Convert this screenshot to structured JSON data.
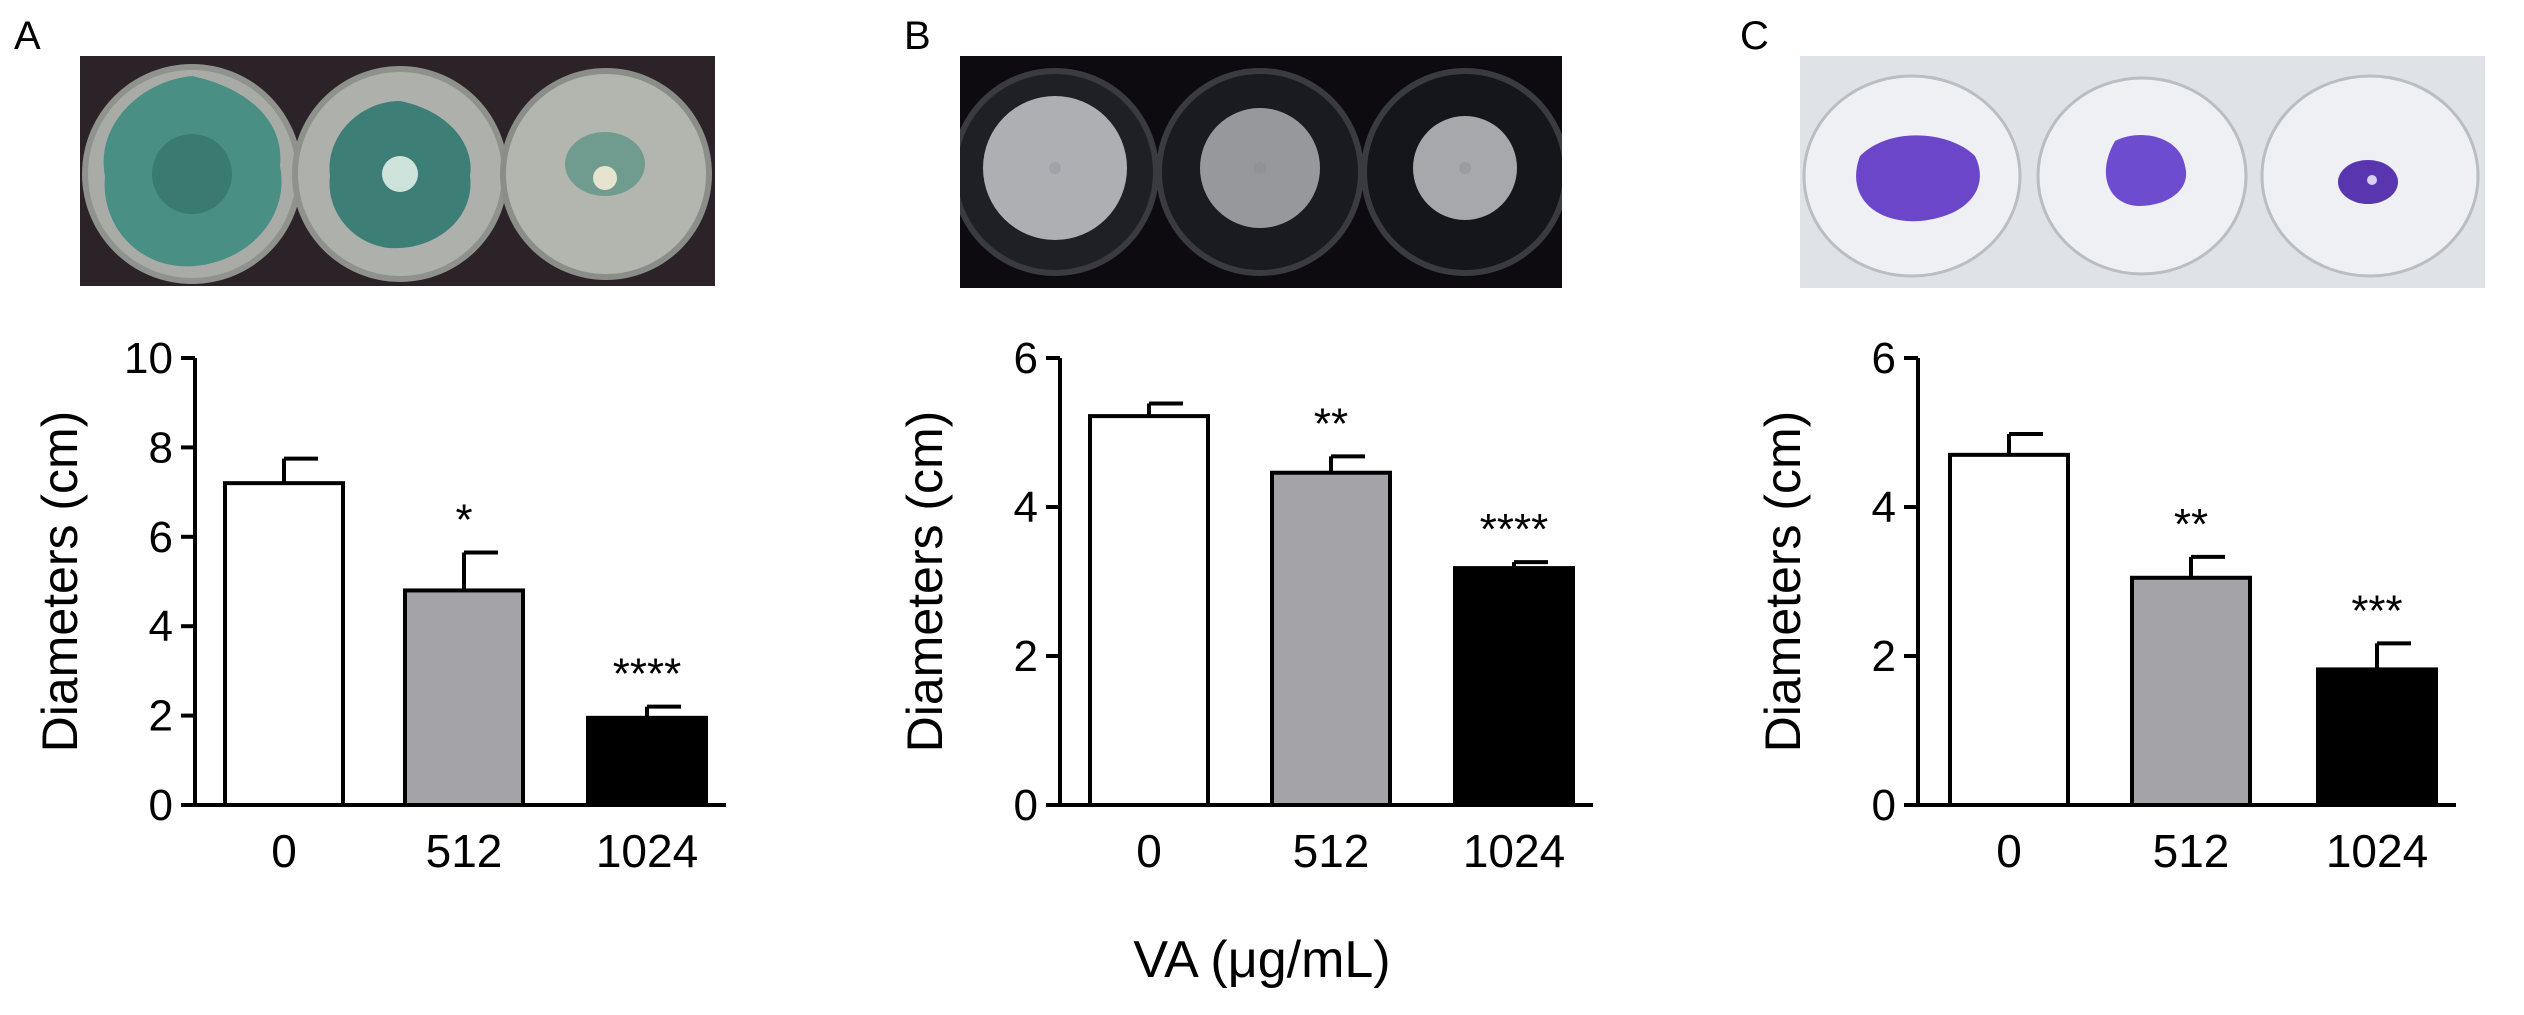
{
  "figure": {
    "xlabel": "VA (μg/mL)",
    "colors": {
      "bar0": "#ffffff",
      "bar1": "#a3a3a8",
      "bar2": "#000000",
      "axis": "#000000"
    }
  },
  "panels": [
    {
      "letter": "A",
      "photo": {
        "background": "#2b2328",
        "plate_colors": [
          "#4a8f84",
          "#3d7f76",
          "#d4d7c8"
        ],
        "description_icon": "petri-dish-photo-green-colonies"
      }
    },
    {
      "letter": "B",
      "photo": {
        "background": "#0e0b10",
        "plate_colors": [
          "#c7c9cc",
          "#b6b8bc",
          "#c0c2c6"
        ],
        "description_icon": "petri-dish-photo-white-colonies"
      }
    },
    {
      "letter": "C",
      "photo": {
        "background": "#dfe2e6",
        "plate_colors": [
          "#6b46c9",
          "#6d4ccf",
          "#5a35b0"
        ],
        "description_icon": "petri-dish-photo-purple-biofilm"
      }
    }
  ],
  "chart_data": [
    {
      "type": "bar",
      "panel": "A",
      "categories": [
        "0",
        "512",
        "1024"
      ],
      "values": [
        7.2,
        4.8,
        1.95
      ],
      "errors": [
        0.55,
        0.85,
        0.25
      ],
      "significance": [
        "",
        "*",
        "****"
      ],
      "ylabel": "Diameters (cm)",
      "ylim": [
        0,
        10
      ],
      "yticks": [
        "0",
        "2",
        "4",
        "6",
        "8",
        "10"
      ],
      "grid": false
    },
    {
      "type": "bar",
      "panel": "B",
      "categories": [
        "0",
        "512",
        "1024"
      ],
      "values": [
        5.22,
        4.46,
        3.18
      ],
      "errors": [
        0.17,
        0.22,
        0.08
      ],
      "significance": [
        "",
        "**",
        "****"
      ],
      "ylabel": "Diameters (cm)",
      "ylim": [
        0,
        6
      ],
      "yticks": [
        "0",
        "2",
        "4",
        "6"
      ],
      "grid": false
    },
    {
      "type": "bar",
      "panel": "C",
      "categories": [
        "0",
        "512",
        "1024"
      ],
      "values": [
        4.7,
        3.05,
        1.82
      ],
      "errors": [
        0.28,
        0.28,
        0.35
      ],
      "significance": [
        "",
        "**",
        "***"
      ],
      "ylabel": "Diameters (cm)",
      "ylim": [
        0,
        6
      ],
      "yticks": [
        "0",
        "2",
        "4",
        "6"
      ],
      "grid": false
    }
  ]
}
